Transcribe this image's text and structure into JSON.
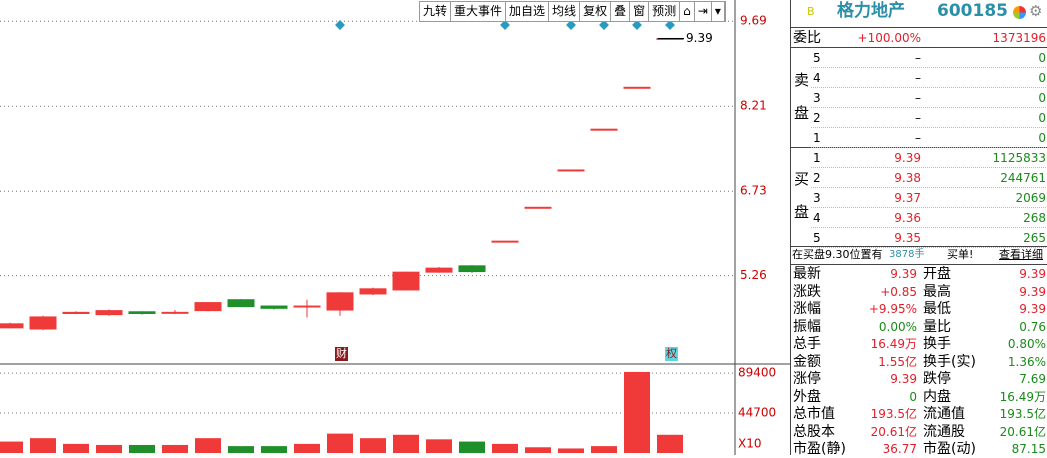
{
  "toolbar": [
    "九转",
    "重大事件",
    "加自选",
    "均线",
    "复权",
    "叠",
    "窗",
    "预测"
  ],
  "stock": {
    "badge": "B",
    "name": "格力地产",
    "code": "600185"
  },
  "chart": {
    "type": "candlestick",
    "ylim": [
      3.79,
      10.06
    ],
    "yticks": [
      9.69,
      8.21,
      6.73,
      5.26
    ],
    "last_price": 9.39,
    "markers": [
      "财",
      "权"
    ],
    "candles": [
      {
        "open": 4.35,
        "close": 4.42,
        "high": 4.44,
        "low": 4.34
      },
      {
        "open": 4.33,
        "close": 4.54,
        "high": 4.56,
        "low": 4.31
      },
      {
        "open": 4.6,
        "close": 4.62,
        "high": 4.64,
        "low": 4.59
      },
      {
        "open": 4.58,
        "close": 4.65,
        "high": 4.67,
        "low": 4.56
      },
      {
        "open": 4.63,
        "close": 4.6,
        "high": 4.64,
        "low": 4.58
      },
      {
        "open": 4.61,
        "close": 4.62,
        "high": 4.66,
        "low": 4.59
      },
      {
        "open": 4.65,
        "close": 4.79,
        "high": 4.8,
        "low": 4.64
      },
      {
        "open": 4.84,
        "close": 4.72,
        "high": 4.85,
        "low": 4.71
      },
      {
        "open": 4.73,
        "close": 4.69,
        "high": 4.74,
        "low": 4.67
      },
      {
        "open": 4.73,
        "close": 4.73,
        "high": 4.84,
        "low": 4.53
      },
      {
        "open": 4.66,
        "close": 4.96,
        "high": 4.97,
        "low": 4.56
      },
      {
        "open": 4.94,
        "close": 5.03,
        "high": 5.05,
        "low": 4.92
      },
      {
        "open": 5.01,
        "close": 5.32,
        "high": 5.33,
        "low": 5.0
      },
      {
        "open": 5.32,
        "close": 5.39,
        "high": 5.41,
        "low": 5.31
      },
      {
        "open": 5.43,
        "close": 5.33,
        "high": 5.44,
        "low": 5.31
      },
      {
        "open": 5.86,
        "close": 5.86,
        "high": 5.86,
        "low": 5.86
      },
      {
        "open": 6.45,
        "close": 6.45,
        "high": 6.45,
        "low": 6.45
      },
      {
        "open": 7.1,
        "close": 7.1,
        "high": 7.1,
        "low": 7.1
      },
      {
        "open": 7.81,
        "close": 7.81,
        "high": 7.81,
        "low": 7.81
      },
      {
        "open": 8.54,
        "close": 8.54,
        "high": 8.54,
        "low": 8.54
      },
      {
        "open": 9.39,
        "close": 9.39,
        "high": 9.39,
        "low": 9.39
      }
    ],
    "volume": {
      "ylim": [
        0,
        99600
      ],
      "yticks": [
        89400,
        44700
      ],
      "unit": "X10",
      "values": [
        12800,
        16600,
        10200,
        9000,
        9000,
        9000,
        16600,
        7700,
        7700,
        10200,
        21700,
        16600,
        20400,
        15300,
        12800,
        10200,
        6400,
        5100,
        7700,
        90700,
        20400
      ]
    }
  },
  "book": {
    "ratio_label": "委比",
    "ratio": "+100.00%",
    "ratio_diff": "1373196",
    "sell_label": [
      "卖",
      "盘"
    ],
    "buy_label": [
      "买",
      "盘"
    ],
    "sell": [
      [
        "5",
        "–",
        "0"
      ],
      [
        "4",
        "–",
        "0"
      ],
      [
        "3",
        "–",
        "0"
      ],
      [
        "2",
        "–",
        "0"
      ],
      [
        "1",
        "–",
        "0"
      ]
    ],
    "buy": [
      [
        "1",
        "9.39",
        "1125833"
      ],
      [
        "2",
        "9.38",
        "244761"
      ],
      [
        "3",
        "9.37",
        "2069"
      ],
      [
        "4",
        "9.36",
        "268"
      ],
      [
        "5",
        "9.35",
        "265"
      ]
    ],
    "notice": {
      "text": "在买盘9.30位置有",
      "volume": "3878手",
      "tail": "买单!",
      "link": "查看详细"
    }
  },
  "stats": [
    [
      "最新",
      "9.39",
      "开盘",
      "9.39"
    ],
    [
      "涨跌",
      "+0.85",
      "最高",
      "9.39"
    ],
    [
      "涨幅",
      "+9.95%",
      "最低",
      "9.39"
    ],
    [
      "振幅",
      "0.00%",
      "量比",
      "0.76"
    ],
    [
      "总手",
      "16.49万",
      "换手",
      "0.80%"
    ],
    [
      "金额",
      "1.55亿",
      "换手(实)",
      "1.36%"
    ],
    [
      "涨停",
      "9.39",
      "跌停",
      "7.69"
    ],
    [
      "外盘",
      "0",
      "内盘",
      "16.49万"
    ],
    [
      "总市值",
      "193.5亿",
      "流通值",
      "193.5亿"
    ],
    [
      "总股本",
      "20.61亿",
      "流通股",
      "20.61亿"
    ],
    [
      "市盈(静)",
      "36.77",
      "市盈(动)",
      "87.15"
    ]
  ]
}
